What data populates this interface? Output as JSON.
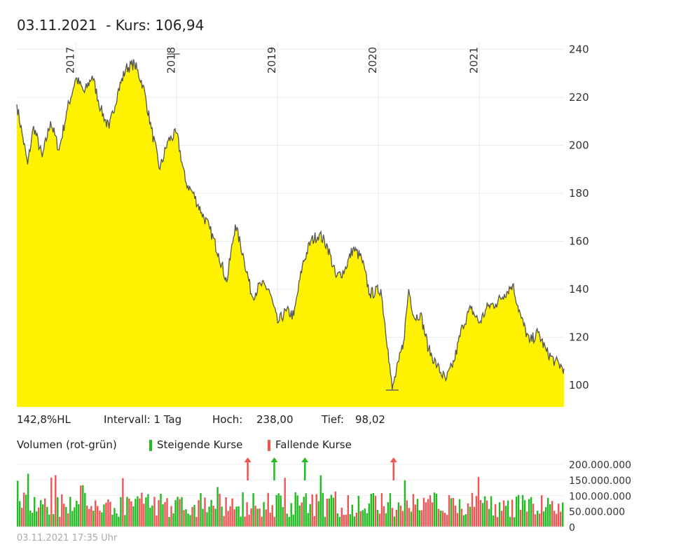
{
  "header": {
    "title": "03.11.2021  - Kurs: 106,94"
  },
  "info": {
    "hl": "142,8%HL",
    "interval": "Intervall: 1 Tag",
    "high_label": "Hoch:",
    "high_value": "238,00",
    "low_label": "Tief:",
    "low_value": "98,02"
  },
  "legend": {
    "title": "Volumen (rot-grün)",
    "up": "Steigende Kurse",
    "down": "Fallende Kurse",
    "up_color": "#22bb22",
    "down_color": "#ee5555"
  },
  "footer": {
    "timestamp": "03.11.2021 17:35 Uhr"
  },
  "chart_data": [
    {
      "type": "area",
      "fill_color": "#fff200",
      "line_color": "#555555",
      "x_range": [
        "2016-06-01",
        "2021-11-03"
      ],
      "x_year_labels": [
        "2017",
        "2018",
        "2019",
        "2020",
        "2021"
      ],
      "ylim": [
        91,
        243
      ],
      "y_ticks": [
        100,
        120,
        140,
        160,
        180,
        200,
        220,
        240
      ],
      "grid": true,
      "points": [
        [
          "2016-06-01",
          217
        ],
        [
          "2016-06-20",
          205
        ],
        [
          "2016-07-10",
          192
        ],
        [
          "2016-08-01",
          208
        ],
        [
          "2016-09-01",
          195
        ],
        [
          "2016-10-01",
          210
        ],
        [
          "2016-11-01",
          198
        ],
        [
          "2016-12-01",
          215
        ],
        [
          "2017-01-01",
          228
        ],
        [
          "2017-02-01",
          222
        ],
        [
          "2017-03-01",
          229
        ],
        [
          "2017-04-01",
          215
        ],
        [
          "2017-05-01",
          207
        ],
        [
          "2017-06-01",
          222
        ],
        [
          "2017-07-01",
          232
        ],
        [
          "2017-08-01",
          234
        ],
        [
          "2017-09-01",
          225
        ],
        [
          "2017-10-01",
          207
        ],
        [
          "2017-11-01",
          190
        ],
        [
          "2017-12-01",
          202
        ],
        [
          "2018-01-01",
          205
        ],
        [
          "2018-02-01",
          185
        ],
        [
          "2018-03-01",
          180
        ],
        [
          "2018-04-01",
          172
        ],
        [
          "2018-05-01",
          165
        ],
        [
          "2018-06-01",
          155
        ],
        [
          "2018-07-01",
          143
        ],
        [
          "2018-08-01",
          167
        ],
        [
          "2018-09-01",
          153
        ],
        [
          "2018-10-01",
          137
        ],
        [
          "2018-11-01",
          142
        ],
        [
          "2018-12-01",
          140
        ],
        [
          "2019-01-01",
          126
        ],
        [
          "2019-02-01",
          131
        ],
        [
          "2019-03-01",
          129
        ],
        [
          "2019-04-01",
          150
        ],
        [
          "2019-05-01",
          160
        ],
        [
          "2019-06-01",
          163
        ],
        [
          "2019-07-01",
          158
        ],
        [
          "2019-08-01",
          145
        ],
        [
          "2019-09-01",
          148
        ],
        [
          "2019-10-01",
          157
        ],
        [
          "2019-11-01",
          153
        ],
        [
          "2019-12-01",
          138
        ],
        [
          "2020-01-10",
          140
        ],
        [
          "2020-02-05",
          115
        ],
        [
          "2020-02-20",
          98
        ],
        [
          "2020-03-15",
          110
        ],
        [
          "2020-04-01",
          118
        ],
        [
          "2020-04-20",
          140
        ],
        [
          "2020-05-10",
          128
        ],
        [
          "2020-06-01",
          130
        ],
        [
          "2020-07-01",
          115
        ],
        [
          "2020-08-01",
          108
        ],
        [
          "2020-09-01",
          102
        ],
        [
          "2020-10-01",
          110
        ],
        [
          "2020-11-01",
          125
        ],
        [
          "2020-12-01",
          132
        ],
        [
          "2021-01-01",
          126
        ],
        [
          "2021-02-01",
          133
        ],
        [
          "2021-03-01",
          134
        ],
        [
          "2021-04-01",
          138
        ],
        [
          "2021-05-01",
          142
        ],
        [
          "2021-06-01",
          128
        ],
        [
          "2021-07-01",
          118
        ],
        [
          "2021-08-01",
          122
        ],
        [
          "2021-09-01",
          114
        ],
        [
          "2021-10-01",
          110
        ],
        [
          "2021-11-03",
          107
        ]
      ],
      "high_marker": [
        "2017-12-20",
        238.0
      ],
      "low_marker": [
        "2020-02-20",
        98.02
      ]
    },
    {
      "type": "bar",
      "series_label": "Volumen (rot-grün)",
      "ylim": [
        0,
        215000000
      ],
      "y_ticks": [
        "200.000.000",
        "150.000.000",
        "100.000.000",
        "50.000.000",
        "0"
      ],
      "y_tick_values": [
        200000000,
        150000000,
        100000000,
        50000000,
        0
      ],
      "bar_count": 260,
      "typical_range": [
        30000000,
        110000000
      ],
      "overflow_arrows": [
        [
          "2018-09-15",
          "down"
        ],
        [
          "2018-12-20",
          "up"
        ],
        [
          "2019-04-10",
          "up"
        ],
        [
          "2020-02-25",
          "down"
        ]
      ]
    }
  ]
}
